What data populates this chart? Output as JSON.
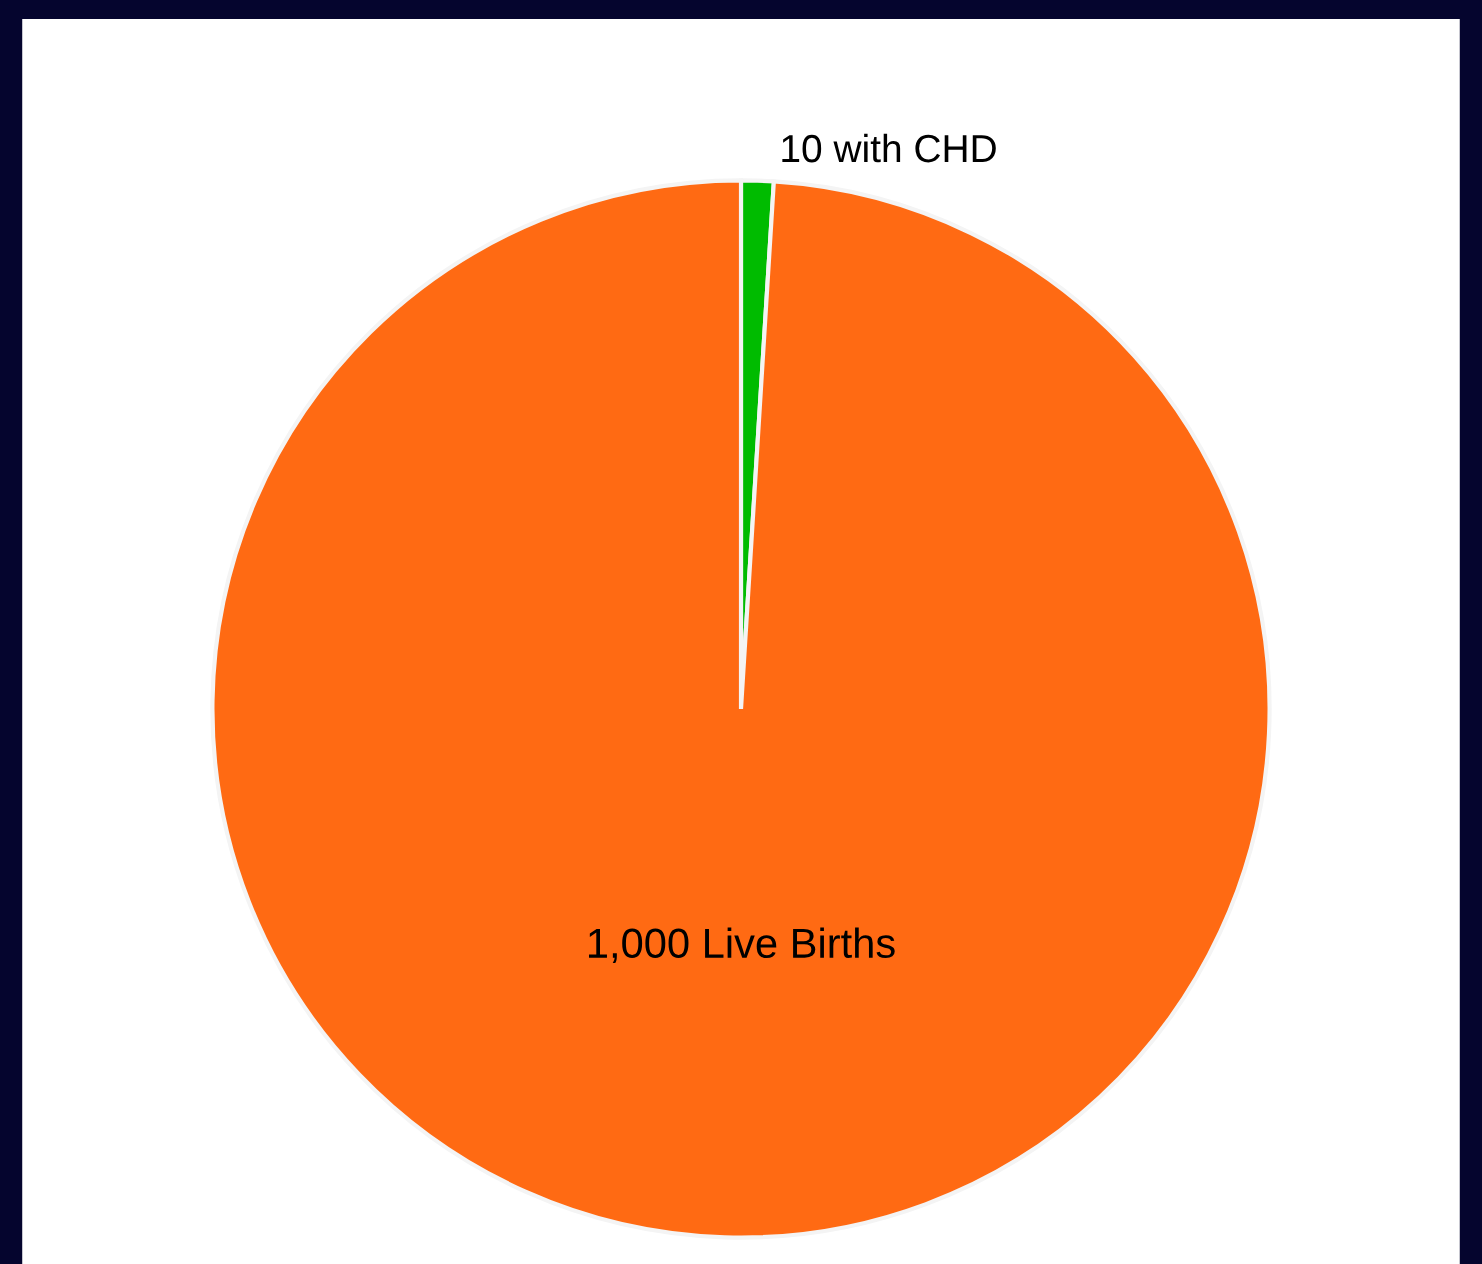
{
  "chart_data": {
    "type": "pie",
    "categories": [
      "10 with CHD",
      "1,000 Live Births"
    ],
    "values": [
      10,
      1000
    ],
    "colors": [
      "#00bb00",
      "#ff6a13"
    ]
  }
}
